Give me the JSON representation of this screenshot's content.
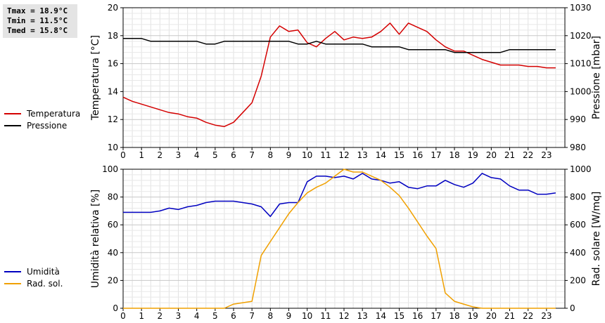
{
  "stats": {
    "tmax": "Tmax = 18.9°C",
    "tmin": "Tmin = 11.5°C",
    "tmed": "Tmed = 15.8°C"
  },
  "chart_data": [
    {
      "type": "line",
      "xlabel": "",
      "ylabel": "Temperatura [°C]",
      "y2label": "Pressione [mbar]",
      "xlim": [
        0,
        24
      ],
      "ylim": [
        10,
        20
      ],
      "y2lim": [
        980,
        1030
      ],
      "x_ticks": [
        0,
        1,
        2,
        3,
        4,
        5,
        6,
        7,
        8,
        9,
        10,
        11,
        12,
        13,
        14,
        15,
        16,
        17,
        18,
        19,
        20,
        21,
        22,
        23
      ],
      "y_ticks": [
        10,
        12,
        14,
        16,
        18,
        20
      ],
      "y2_ticks": [
        980,
        990,
        1000,
        1010,
        1020,
        1030
      ],
      "grid": true,
      "legend_position": "left",
      "series": [
        {
          "name": "Temperatura",
          "color": "#d40000",
          "axis": "left",
          "x": [
            0,
            0.5,
            1,
            1.5,
            2,
            2.5,
            3,
            3.5,
            4,
            4.5,
            5,
            5.5,
            6,
            6.5,
            7,
            7.5,
            8,
            8.5,
            9,
            9.5,
            10,
            10.5,
            11,
            11.5,
            12,
            12.5,
            13,
            13.5,
            14,
            14.5,
            15,
            15.5,
            16,
            16.5,
            17,
            17.5,
            18,
            18.5,
            19,
            19.5,
            20,
            20.5,
            21,
            21.5,
            22,
            22.5,
            23,
            23.5
          ],
          "values": [
            13.6,
            13.3,
            13.1,
            12.9,
            12.7,
            12.5,
            12.4,
            12.2,
            12.1,
            11.8,
            11.6,
            11.5,
            11.8,
            12.5,
            13.2,
            15.1,
            17.9,
            18.7,
            18.3,
            18.4,
            17.5,
            17.2,
            17.8,
            18.3,
            17.7,
            17.9,
            17.8,
            17.9,
            18.3,
            18.9,
            18.1,
            18.9,
            18.6,
            18.3,
            17.7,
            17.2,
            16.9,
            16.9,
            16.6,
            16.3,
            16.1,
            15.9,
            15.9,
            15.9,
            15.8,
            15.8,
            15.7,
            15.7
          ]
        },
        {
          "name": "Pressione",
          "color": "#000000",
          "axis": "right",
          "x": [
            0,
            0.5,
            1,
            1.5,
            2,
            2.5,
            3,
            3.5,
            4,
            4.5,
            5,
            5.5,
            6,
            6.5,
            7,
            7.5,
            8,
            8.5,
            9,
            9.5,
            10,
            10.5,
            11,
            11.5,
            12,
            12.5,
            13,
            13.5,
            14,
            14.5,
            15,
            15.5,
            16,
            16.5,
            17,
            17.5,
            18,
            18.5,
            19,
            19.5,
            20,
            20.5,
            21,
            21.5,
            22,
            22.5,
            23,
            23.5
          ],
          "values": [
            1019,
            1019,
            1019,
            1018,
            1018,
            1018,
            1018,
            1018,
            1018,
            1017,
            1017,
            1018,
            1018,
            1018,
            1018,
            1018,
            1018,
            1018,
            1018,
            1017,
            1017,
            1018,
            1017,
            1017,
            1017,
            1017,
            1017,
            1016,
            1016,
            1016,
            1016,
            1015,
            1015,
            1015,
            1015,
            1015,
            1014,
            1014,
            1014,
            1014,
            1014,
            1014,
            1015,
            1015,
            1015,
            1015,
            1015,
            1015
          ]
        }
      ]
    },
    {
      "type": "line",
      "xlabel": "",
      "ylabel": "Umidità relativa [%]",
      "y2label": "Rad. solare [W/mq]",
      "xlim": [
        0,
        24
      ],
      "ylim": [
        0,
        100
      ],
      "y2lim": [
        0,
        1000
      ],
      "x_ticks": [
        0,
        1,
        2,
        3,
        4,
        5,
        6,
        7,
        8,
        9,
        10,
        11,
        12,
        13,
        14,
        15,
        16,
        17,
        18,
        19,
        20,
        21,
        22,
        23
      ],
      "y_ticks": [
        0,
        20,
        40,
        60,
        80,
        100
      ],
      "y2_ticks": [
        0,
        200,
        400,
        600,
        800,
        1000
      ],
      "grid": true,
      "legend_position": "left",
      "series": [
        {
          "name": "Umidità",
          "color": "#0000c0",
          "axis": "left",
          "x": [
            0,
            0.5,
            1,
            1.5,
            2,
            2.5,
            3,
            3.5,
            4,
            4.5,
            5,
            5.5,
            6,
            6.5,
            7,
            7.5,
            8,
            8.5,
            9,
            9.5,
            10,
            10.5,
            11,
            11.5,
            12,
            12.5,
            13,
            13.5,
            14,
            14.5,
            15,
            15.5,
            16,
            16.5,
            17,
            17.5,
            18,
            18.5,
            19,
            19.5,
            20,
            20.5,
            21,
            21.5,
            22,
            22.5,
            23,
            23.5
          ],
          "values": [
            69,
            69,
            69,
            69,
            70,
            72,
            71,
            73,
            74,
            76,
            77,
            77,
            77,
            76,
            75,
            73,
            66,
            75,
            76,
            76,
            91,
            95,
            95,
            94,
            95,
            93,
            97,
            93,
            92,
            90,
            91,
            87,
            86,
            88,
            88,
            92,
            89,
            87,
            90,
            97,
            94,
            93,
            88,
            85,
            85,
            82,
            82,
            83
          ]
        },
        {
          "name": "Rad. sol.",
          "color": "#f0a000",
          "axis": "right",
          "x": [
            0,
            0.5,
            1,
            1.5,
            2,
            2.5,
            3,
            3.5,
            4,
            4.5,
            5,
            5.5,
            6,
            6.5,
            7,
            7.5,
            8,
            8.5,
            9,
            9.5,
            10,
            10.5,
            11,
            11.5,
            12,
            12.5,
            13,
            13.5,
            14,
            14.5,
            15,
            15.5,
            16,
            16.5,
            17,
            17.5,
            18,
            18.5,
            19,
            19.5,
            20,
            20.5,
            21,
            21.5,
            22,
            22.5,
            23,
            23.5
          ],
          "values": [
            0,
            0,
            0,
            0,
            0,
            0,
            0,
            0,
            0,
            0,
            0,
            0,
            30,
            40,
            50,
            380,
            480,
            580,
            680,
            760,
            830,
            870,
            900,
            950,
            1000,
            980,
            980,
            950,
            920,
            870,
            810,
            720,
            620,
            520,
            430,
            110,
            50,
            30,
            10,
            0,
            0,
            0,
            0,
            0,
            0,
            0,
            0,
            0
          ]
        }
      ]
    }
  ]
}
